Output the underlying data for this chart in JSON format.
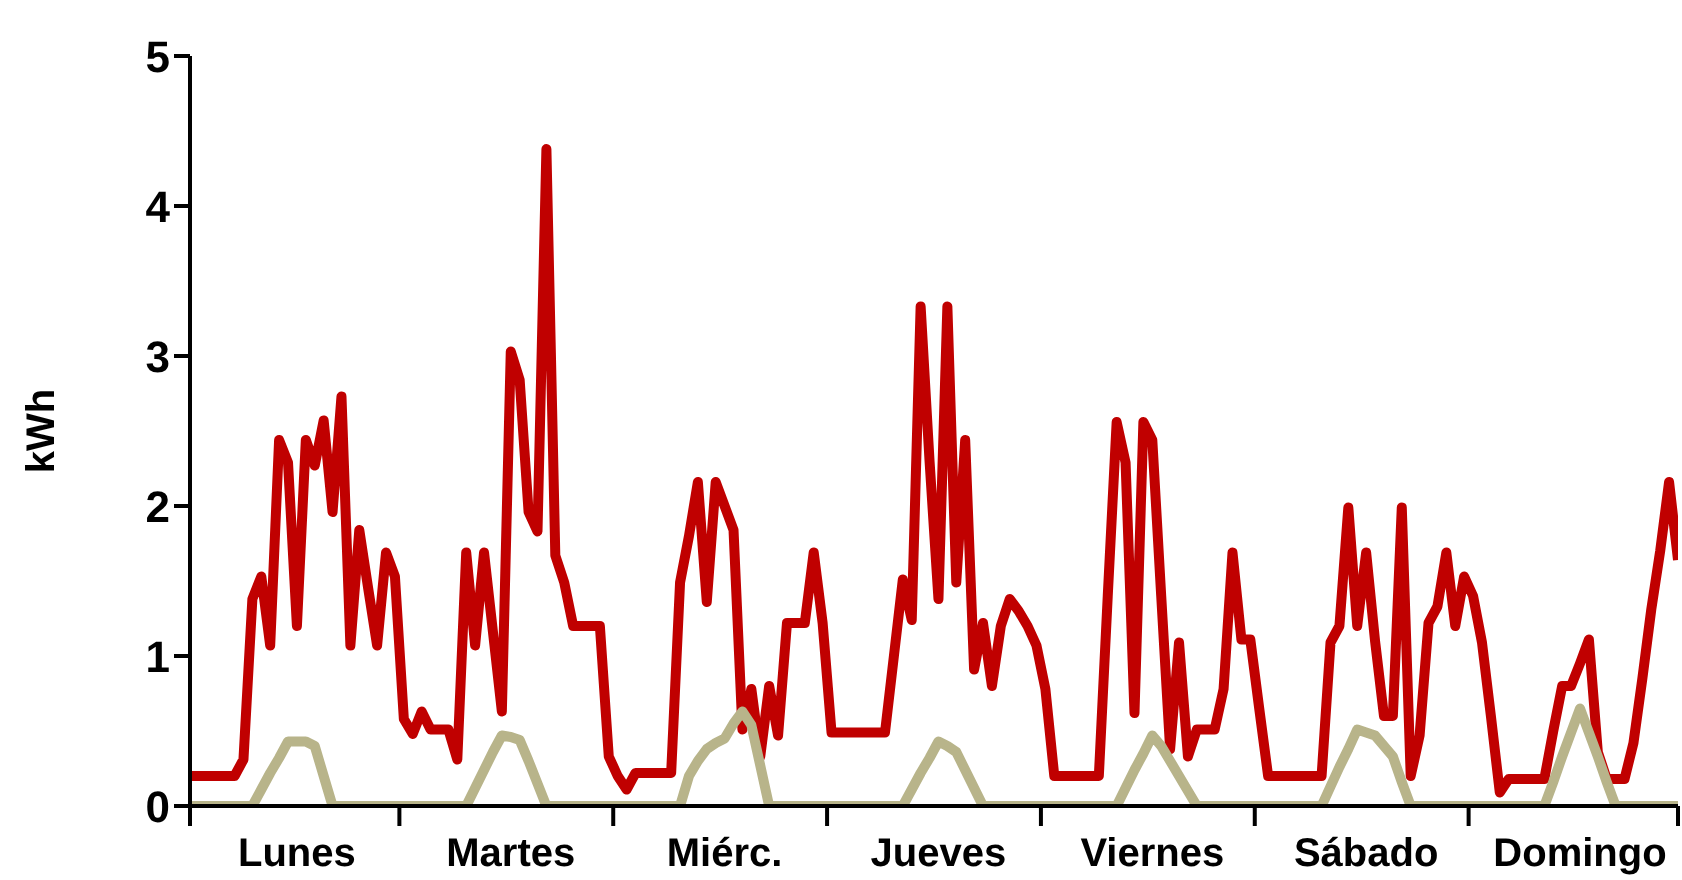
{
  "chart_data": {
    "type": "line",
    "ylabel": "kWh",
    "ylim": [
      0,
      5
    ],
    "yticks": [
      0,
      1,
      2,
      3,
      4,
      5
    ],
    "categories": [
      null,
      null,
      null,
      null,
      null,
      null,
      null,
      null,
      null,
      null,
      null,
      null,
      "Lunes",
      null,
      null,
      null,
      null,
      null,
      null,
      null,
      null,
      null,
      null,
      null,
      null,
      null,
      null,
      null,
      null,
      null,
      null,
      null,
      null,
      null,
      null,
      null,
      "Martes",
      null,
      null,
      null,
      null,
      null,
      null,
      null,
      null,
      null,
      null,
      null,
      null,
      null,
      null,
      null,
      null,
      null,
      null,
      null,
      null,
      null,
      null,
      null,
      "Miérc.",
      null,
      null,
      null,
      null,
      null,
      null,
      null,
      null,
      null,
      null,
      null,
      null,
      null,
      null,
      null,
      null,
      null,
      null,
      null,
      null,
      null,
      null,
      null,
      "Jueves",
      null,
      null,
      null,
      null,
      null,
      null,
      null,
      null,
      null,
      null,
      null,
      null,
      null,
      null,
      null,
      null,
      null,
      null,
      null,
      null,
      null,
      null,
      null,
      "Viernes",
      null,
      null,
      null,
      null,
      null,
      null,
      null,
      null,
      null,
      null,
      null,
      null,
      null,
      null,
      null,
      null,
      null,
      null,
      null,
      null,
      null,
      null,
      null,
      "Sábado",
      null,
      null,
      null,
      null,
      null,
      null,
      null,
      null,
      null,
      null,
      null,
      null,
      null,
      null,
      null,
      null,
      null,
      null,
      null,
      null,
      null,
      null,
      null,
      "Domingo",
      null,
      null,
      null,
      null,
      null,
      null,
      null,
      null,
      null,
      null,
      null
    ],
    "grid": false,
    "legend": false,
    "marker": "none",
    "line_style": "solid",
    "series": [
      {
        "color": "#c00000",
        "values": [
          0.2,
          0.2,
          0.2,
          0.2,
          0.2,
          0.2,
          0.31,
          1.38,
          1.53,
          1.07,
          2.44,
          2.29,
          1.2,
          2.44,
          2.27,
          2.57,
          1.96,
          2.73,
          1.07,
          1.84,
          1.45,
          1.07,
          1.69,
          1.53,
          0.58,
          0.48,
          0.63,
          0.51,
          0.51,
          0.51,
          0.31,
          1.69,
          1.07,
          1.69,
          1.16,
          0.63,
          3.03,
          2.84,
          1.96,
          1.83,
          4.38,
          1.67,
          1.49,
          1.2,
          1.2,
          1.2,
          1.2,
          0.33,
          0.2,
          0.11,
          0.22,
          0.22,
          0.22,
          0.22,
          0.22,
          1.49,
          1.8,
          2.16,
          1.36,
          2.16,
          2.0,
          1.84,
          0.51,
          0.78,
          0.33,
          0.8,
          0.47,
          1.22,
          1.22,
          1.22,
          1.69,
          1.22,
          0.49,
          0.49,
          0.49,
          0.49,
          0.49,
          0.49,
          0.49,
          1.0,
          1.51,
          1.24,
          3.33,
          2.3,
          1.38,
          3.33,
          1.49,
          2.44,
          0.91,
          1.22,
          0.8,
          1.2,
          1.38,
          1.3,
          1.2,
          1.07,
          0.78,
          0.2,
          0.2,
          0.2,
          0.2,
          0.2,
          0.2,
          1.4,
          2.56,
          2.29,
          0.62,
          2.56,
          2.44,
          1.4,
          0.38,
          1.09,
          0.33,
          0.51,
          0.51,
          0.51,
          0.78,
          1.69,
          1.11,
          1.11,
          0.65,
          0.2,
          0.2,
          0.2,
          0.2,
          0.2,
          0.2,
          0.2,
          1.09,
          1.2,
          1.99,
          1.2,
          1.69,
          1.1,
          0.6,
          0.6,
          1.99,
          0.2,
          0.47,
          1.22,
          1.33,
          1.69,
          1.2,
          1.53,
          1.4,
          1.09,
          0.6,
          0.09,
          0.18,
          0.18,
          0.18,
          0.18,
          0.18,
          0.5,
          0.8,
          0.8,
          0.95,
          1.11,
          0.36,
          0.18,
          0.18,
          0.18,
          0.42,
          0.85,
          1.31,
          1.7,
          2.16,
          1.64
        ]
      },
      {
        "color": "#b8b48a",
        "values": [
          0,
          0,
          0,
          0,
          0,
          0,
          0,
          0,
          0.11,
          0.22,
          0.32,
          0.43,
          0.43,
          0.43,
          0.4,
          0.2,
          0,
          0,
          0,
          0,
          0,
          0,
          0,
          0,
          0,
          0,
          0,
          0,
          0,
          0,
          0,
          0,
          0.12,
          0.24,
          0.36,
          0.47,
          0.46,
          0.44,
          0.3,
          0.15,
          0,
          0,
          0,
          0,
          0,
          0,
          0,
          0,
          0,
          0,
          0,
          0,
          0,
          0,
          0,
          0,
          0.2,
          0.3,
          0.38,
          0.42,
          0.45,
          0.55,
          0.63,
          0.54,
          0.27,
          0,
          0,
          0,
          0,
          0,
          0,
          0,
          0,
          0,
          0,
          0,
          0,
          0,
          0,
          0,
          0,
          0.11,
          0.22,
          0.32,
          0.43,
          0.4,
          0.36,
          0.24,
          0.12,
          0,
          0,
          0,
          0,
          0,
          0,
          0,
          0,
          0,
          0,
          0,
          0,
          0,
          0,
          0,
          0,
          0.12,
          0.24,
          0.35,
          0.47,
          0.4,
          0.3,
          0.2,
          0.1,
          0,
          0,
          0,
          0,
          0,
          0,
          0,
          0,
          0,
          0,
          0,
          0,
          0,
          0,
          0,
          0.13,
          0.26,
          0.38,
          0.51,
          0.49,
          0.47,
          0.4,
          0.33,
          0.16,
          0,
          0,
          0,
          0,
          0,
          0,
          0,
          0,
          0,
          0,
          0,
          0,
          0,
          0,
          0,
          0,
          0.16,
          0.33,
          0.49,
          0.65,
          0.49,
          0.33,
          0.16,
          0,
          0,
          0,
          0,
          0,
          0,
          0,
          0
        ]
      }
    ]
  }
}
